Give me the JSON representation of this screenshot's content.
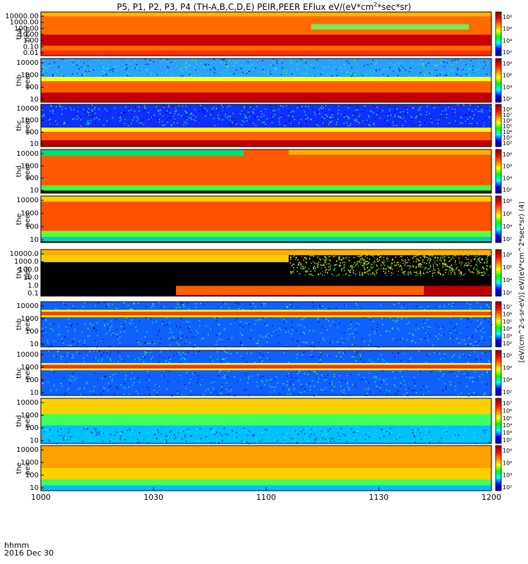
{
  "chart_data": {
    "type": "heatmap",
    "title": "P5, P1, P2, P3, P4 (TH-A,B,C,D,E) PEIR,PEER EFlux eV/(eV*cm",
    "title_sup": "2",
    "title_end": "*sec*sr)",
    "colorbar_label": "[eV/(cm^2-s-sr-eV)] eV/(eV*cm^2*sec*sr) (4)",
    "colorscale": [
      "#000080",
      "#0000ff",
      "#00ffff",
      "#00ff00",
      "#ffff00",
      "#ff8000",
      "#ff0000",
      "#800000"
    ],
    "x_axis": {
      "ticks": [
        "1000",
        "1030",
        "1100",
        "1130",
        "1200"
      ],
      "minutes_from_start": [
        0,
        30,
        60,
        90,
        120
      ],
      "range_minutes": [
        0,
        120
      ],
      "unit_label": "hhmm",
      "date_label": "2016 Dec 30"
    },
    "panels": [
      {
        "label1": "tha",
        "label2": "peer",
        "yticks": [
          "10000.00",
          "1000.00",
          "100.00",
          "10.00",
          "1.00",
          "0.10",
          "0.01"
        ],
        "cbar": [
          "10⁸",
          "10⁶",
          "10⁴",
          "10²"
        ]
      },
      {
        "label1": "thb",
        "label2": "peer",
        "yticks": [
          "10000",
          "1000",
          "100",
          "10"
        ],
        "cbar": [
          "10⁸",
          "10⁶",
          "10⁴",
          "10²"
        ]
      },
      {
        "label1": "thc",
        "label2": "peer",
        "yticks": [
          "10000",
          "1000",
          "100",
          "10"
        ],
        "cbar": [
          "10⁸",
          "10⁷",
          "10⁶",
          "10⁵",
          "10⁴",
          "10³",
          "10²"
        ]
      },
      {
        "label1": "thd",
        "label2": "peer",
        "yticks": [
          "10000",
          "1000",
          "100",
          "10"
        ],
        "cbar": [
          "10⁸",
          "10⁶",
          "10⁴",
          "10²"
        ]
      },
      {
        "label1": "the",
        "label2": "peer",
        "yticks": [
          "10000",
          "1000",
          "100",
          "10"
        ],
        "cbar": [
          "10⁸",
          "10⁶",
          "10⁴",
          "10²"
        ]
      },
      {
        "label1": "tha",
        "label2": "peir",
        "yticks": [
          "10000.0",
          "1000.0",
          "100.0",
          "10.0",
          "1.0",
          "0.1"
        ],
        "cbar": [
          "10⁸",
          "10⁶",
          "10⁴",
          "10²"
        ]
      },
      {
        "label1": "thb",
        "label2": "peir",
        "yticks": [
          "10000",
          "1000",
          "100",
          "10"
        ],
        "cbar": [
          "10⁷",
          "10⁶",
          "10⁵",
          "10⁴",
          "10³",
          "10²"
        ]
      },
      {
        "label1": "thc",
        "label2": "peir",
        "yticks": [
          "10000",
          "1000",
          "100",
          "10"
        ],
        "cbar": [
          "10⁸",
          "10⁶",
          "10⁴",
          "10²"
        ]
      },
      {
        "label1": "thd",
        "label2": "peir",
        "yticks": [
          "10000",
          "1000",
          "100",
          "10"
        ],
        "cbar": [
          "10⁷",
          "10⁶",
          "10⁵",
          "10⁴",
          "10³",
          "10²"
        ]
      },
      {
        "label1": "the",
        "label2": "peir",
        "yticks": [
          "10000",
          "1000",
          "100",
          "10"
        ],
        "cbar": [
          "10⁸",
          "10⁶",
          "10⁴",
          "10²"
        ]
      }
    ]
  }
}
